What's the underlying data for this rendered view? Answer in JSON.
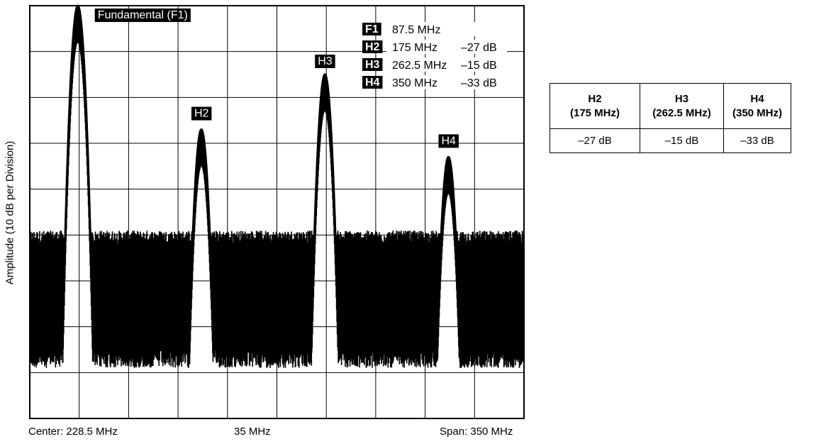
{
  "chart_data": {
    "type": "line",
    "title": "",
    "xlabel": "",
    "ylabel": "Amplitude (10 dB per Division)",
    "x_unit": "MHz",
    "center_label": "Center: 228.5 MHz",
    "division_label": "35 MHz",
    "span_label": "Span: 350 MHz",
    "xlim": [
      53.5,
      403.5
    ],
    "ylim_db": [
      -90,
      0
    ],
    "divisions": {
      "x": 10,
      "y": 9
    },
    "noise_floor_db": [
      -75,
      -52
    ],
    "peaks": [
      {
        "name": "F1",
        "freq": 87.5,
        "amplitude_db": 0,
        "label": "Fundamental (F1)"
      },
      {
        "name": "H2",
        "freq": 175,
        "amplitude_db": -27,
        "label": "H2"
      },
      {
        "name": "H3",
        "freq": 262.5,
        "amplitude_db": -15,
        "label": "H3"
      },
      {
        "name": "H4",
        "freq": 350,
        "amplitude_db": -33,
        "label": "H4"
      }
    ],
    "legend": [
      {
        "tag": "F1",
        "freq": "87.5 MHz",
        "level": ""
      },
      {
        "tag": "H2",
        "freq": "175 MHz",
        "level": "–27 dB"
      },
      {
        "tag": "H3",
        "freq": "262.5 MHz",
        "level": "–15 dB"
      },
      {
        "tag": "H4",
        "freq": "350 MHz",
        "level": "–33 dB"
      }
    ]
  },
  "table": {
    "headers": [
      [
        "H2",
        "(175 MHz)"
      ],
      [
        "H3",
        "(262.5 MHz)"
      ],
      [
        "H4",
        "(350 MHz)"
      ]
    ],
    "values": [
      "–27 dB",
      "–15 dB",
      "–33 dB"
    ]
  }
}
